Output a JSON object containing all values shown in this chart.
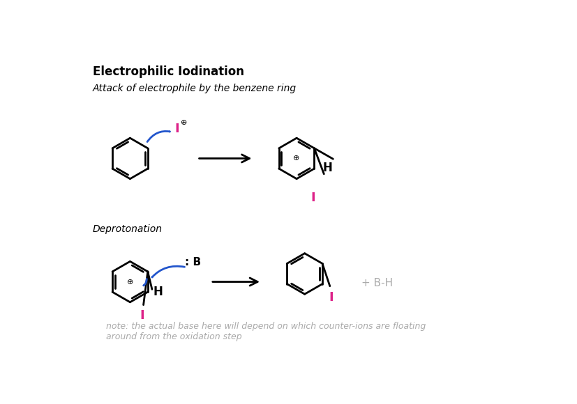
{
  "title": "Electrophilic Iodination",
  "subtitle": "Attack of electrophile by the benzene ring",
  "step2_label": "Deprotonation",
  "note": "note: the actual base here will depend on which counter-ions are floating\naround from the oxidation step",
  "bg_color": "#ffffff",
  "text_color": "#000000",
  "arrow_color": "#000000",
  "curved_arrow_color": "#2255cc",
  "iodine_color": "#dd2288",
  "gray_color": "#aaaaaa",
  "lw_ring": 2.0,
  "lw_arrow": 2.0
}
